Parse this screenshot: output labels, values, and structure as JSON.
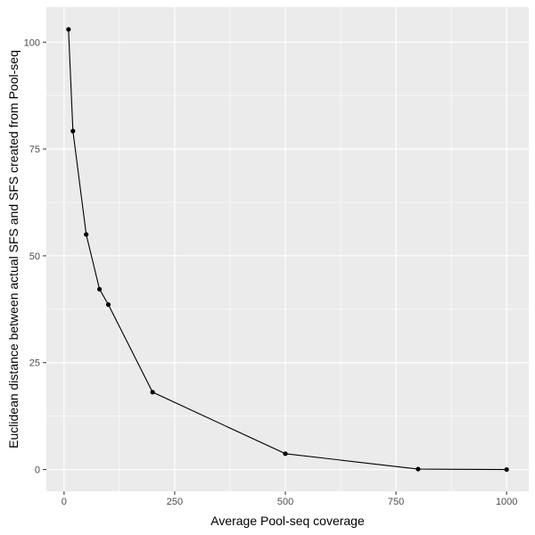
{
  "chart_data": {
    "type": "line",
    "xlabel": "Average Pool-seq coverage",
    "ylabel": "Euclidean distance between actual SFS and SFS created from Pool-seq",
    "xlim": [
      -40,
      1050
    ],
    "ylim": [
      -5.1,
      108.2
    ],
    "x_ticks": [
      0,
      250,
      500,
      750,
      1000
    ],
    "y_ticks": [
      0,
      25,
      50,
      75,
      100
    ],
    "x_tick_labels": [
      "0",
      "250",
      "500",
      "750",
      "1000"
    ],
    "y_tick_labels": [
      "0",
      "25",
      "50",
      "75",
      "100"
    ],
    "grid": true,
    "x": [
      10,
      20,
      50,
      80,
      100,
      200,
      500,
      800,
      1000
    ],
    "y": [
      103,
      79.2,
      55,
      42.2,
      38.6,
      18.1,
      3.7,
      0.1,
      0.0
    ],
    "colors": {
      "panel_background": "#ebebeb",
      "grid_major": "#ffffff",
      "line": "#000000",
      "point": "#000000",
      "tick_text": "#4d4d4d",
      "tick_mark": "#333333"
    }
  }
}
